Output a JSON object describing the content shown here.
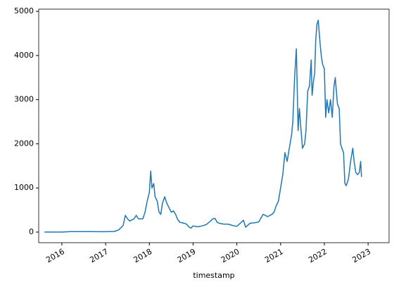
{
  "chart_data": {
    "type": "line",
    "xlabel": "timestamp",
    "x": [
      2015.6,
      2016.0,
      2016.2,
      2016.5,
      2016.9,
      2017.0,
      2017.2,
      2017.3,
      2017.4,
      2017.45,
      2017.5,
      2017.55,
      2017.65,
      2017.7,
      2017.75,
      2017.85,
      2017.9,
      2017.95,
      2018.0,
      2018.03,
      2018.06,
      2018.1,
      2018.13,
      2018.18,
      2018.22,
      2018.26,
      2018.3,
      2018.35,
      2018.4,
      2018.45,
      2018.5,
      2018.55,
      2018.6,
      2018.65,
      2018.7,
      2018.8,
      2018.85,
      2018.9,
      2018.95,
      2019.0,
      2019.1,
      2019.2,
      2019.3,
      2019.4,
      2019.45,
      2019.5,
      2019.55,
      2019.6,
      2019.7,
      2019.8,
      2019.9,
      2020.0,
      2020.1,
      2020.15,
      2020.2,
      2020.3,
      2020.4,
      2020.5,
      2020.6,
      2020.65,
      2020.7,
      2020.8,
      2020.85,
      2020.9,
      2020.95,
      2021.0,
      2021.05,
      2021.1,
      2021.15,
      2021.2,
      2021.25,
      2021.28,
      2021.32,
      2021.36,
      2021.38,
      2021.4,
      2021.43,
      2021.46,
      2021.5,
      2021.55,
      2021.58,
      2021.62,
      2021.66,
      2021.7,
      2021.72,
      2021.75,
      2021.78,
      2021.8,
      2021.83,
      2021.86,
      2021.9,
      2021.93,
      2021.96,
      2022.0,
      2022.03,
      2022.06,
      2022.1,
      2022.14,
      2022.18,
      2022.22,
      2022.25,
      2022.3,
      2022.34,
      2022.37,
      2022.4,
      2022.44,
      2022.47,
      2022.5,
      2022.55,
      2022.6,
      2022.65,
      2022.68,
      2022.72,
      2022.76,
      2022.8,
      2022.83,
      2022.85
    ],
    "series": [
      {
        "color": "#1f77b4",
        "values": [
          1,
          1,
          10,
          12,
          8,
          8,
          15,
          50,
          150,
          380,
          300,
          250,
          300,
          380,
          300,
          300,
          450,
          700,
          900,
          1380,
          1000,
          1100,
          800,
          700,
          450,
          400,
          650,
          800,
          650,
          550,
          450,
          480,
          400,
          280,
          220,
          200,
          180,
          120,
          90,
          140,
          120,
          140,
          170,
          250,
          300,
          310,
          220,
          200,
          180,
          180,
          150,
          130,
          220,
          270,
          110,
          200,
          210,
          230,
          400,
          380,
          350,
          400,
          450,
          600,
          700,
          1000,
          1300,
          1800,
          1600,
          1900,
          2200,
          2500,
          3500,
          4150,
          3300,
          2300,
          2800,
          2400,
          1900,
          2000,
          2300,
          3200,
          3300,
          3900,
          3100,
          3400,
          3600,
          4300,
          4700,
          4800,
          4300,
          4000,
          3800,
          3700,
          2600,
          3000,
          2700,
          3000,
          2600,
          3300,
          3500,
          2900,
          2800,
          2000,
          1900,
          1800,
          1100,
          1050,
          1200,
          1600,
          1900,
          1600,
          1350,
          1300,
          1350,
          1600,
          1250
        ]
      }
    ],
    "xlim": [
      2015.47,
      2023.48
    ],
    "xticks": [
      2016,
      2017,
      2018,
      2019,
      2020,
      2021,
      2022,
      2023
    ],
    "ylim": [
      -240,
      5050
    ],
    "yticks": [
      0,
      1000,
      2000,
      3000,
      4000,
      5000
    ]
  }
}
